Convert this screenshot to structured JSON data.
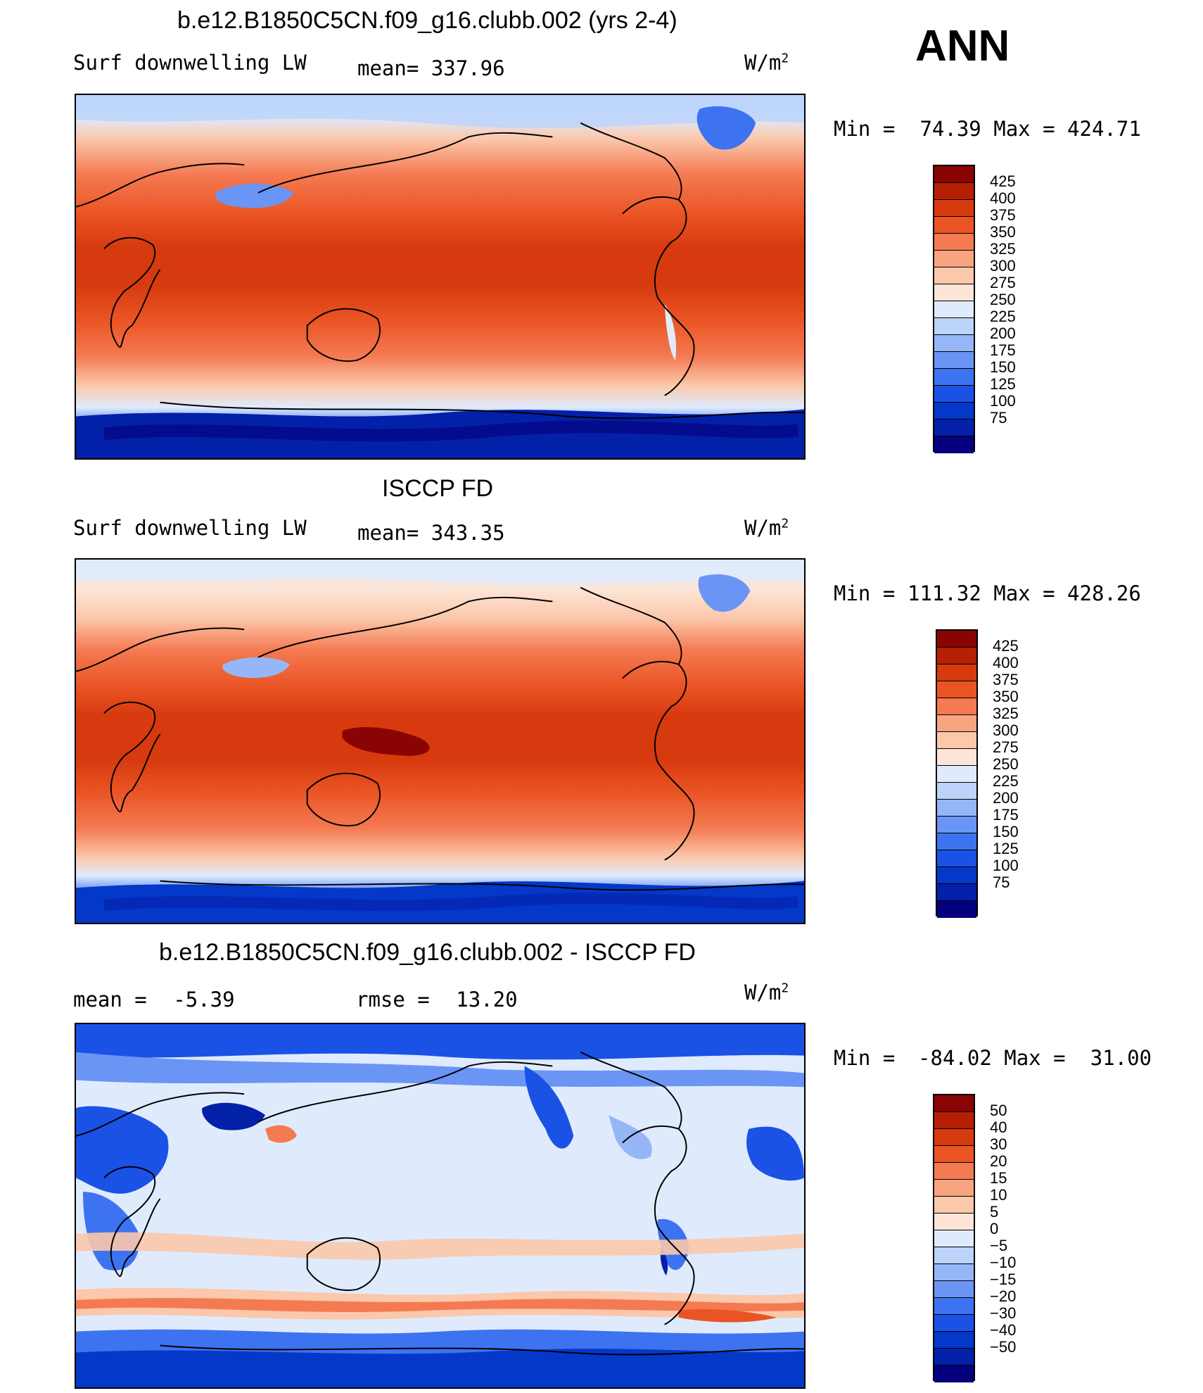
{
  "season": "ANN",
  "colorbar_colors": {
    "abs": [
      "#05007d",
      "#0320a8",
      "#0338c8",
      "#1b52e6",
      "#3d73f0",
      "#6a95f5",
      "#95b7f8",
      "#bcd3fb",
      "#dfebfd",
      "#fde6d8",
      "#fbc8ab",
      "#f9a480",
      "#f47a52",
      "#ea5424",
      "#d63a0e",
      "#b52005",
      "#8a0403"
    ],
    "diff": [
      "#05007d",
      "#0320a8",
      "#0338c8",
      "#1b52e6",
      "#3d73f0",
      "#6a95f5",
      "#95b7f8",
      "#bcd3fb",
      "#dfebfd",
      "#fde6d8",
      "#fbc8ab",
      "#f9a480",
      "#f47a52",
      "#ea5424",
      "#d63a0e",
      "#b52005",
      "#8a0403"
    ]
  },
  "panels": [
    {
      "title": "b.e12.B1850C5CN.f09_g16.clubb.002 (yrs 2-4)",
      "left_label": "Surf downwelling LW",
      "stat_label": "mean=",
      "stat_value": "337.96",
      "units": "W/m",
      "units_exp": "2",
      "min_label": "Min =",
      "min_value": "74.39",
      "max_label": "Max =",
      "max_value": "424.71",
      "colorbar_labels": [
        "425",
        "400",
        "375",
        "350",
        "325",
        "300",
        "275",
        "250",
        "225",
        "200",
        "175",
        "150",
        "125",
        "100",
        "75"
      ]
    },
    {
      "title": "ISCCP FD",
      "left_label": "Surf downwelling LW",
      "stat_label": "mean=",
      "stat_value": "343.35",
      "units": "W/m",
      "units_exp": "2",
      "min_label": "Min =",
      "min_value": "111.32",
      "max_label": "Max =",
      "max_value": "428.26",
      "colorbar_labels": [
        "425",
        "400",
        "375",
        "350",
        "325",
        "300",
        "275",
        "250",
        "225",
        "200",
        "175",
        "150",
        "125",
        "100",
        "75"
      ]
    },
    {
      "title": "b.e12.B1850C5CN.f09_g16.clubb.002 - ISCCP FD",
      "left_label": "mean =",
      "left_value": "-5.39",
      "stat_label": "rmse =",
      "stat_value": "13.20",
      "units": "W/m",
      "units_exp": "2",
      "min_label": "Min =",
      "min_value": "-84.02",
      "max_label": "Max =",
      "max_value": "31.00",
      "colorbar_labels": [
        "50",
        "40",
        "30",
        "20",
        "15",
        "10",
        "5",
        "0",
        "-5",
        "-10",
        "-15",
        "-20",
        "-30",
        "-40",
        "-50"
      ]
    }
  ]
}
